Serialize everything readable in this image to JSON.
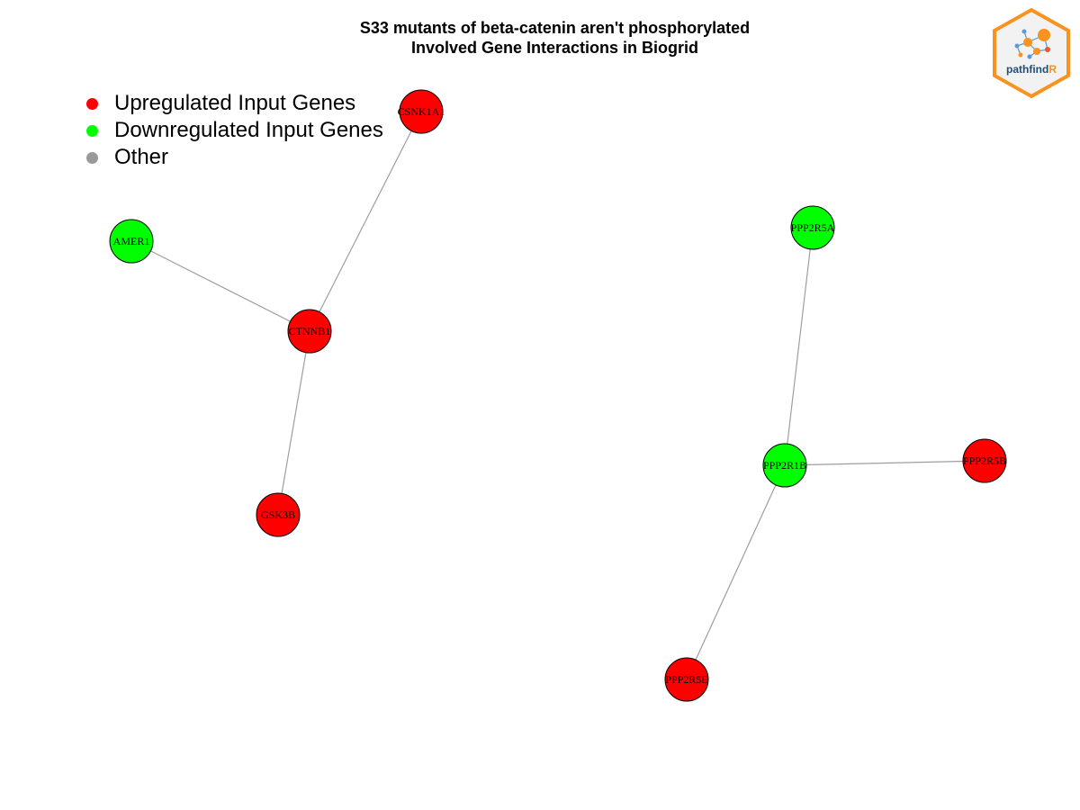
{
  "title": {
    "line1": "S33 mutants of beta-catenin aren't phosphorylated",
    "line2": "Involved Gene Interactions in Biogrid"
  },
  "legend": [
    {
      "label": "Upregulated Input Genes",
      "color": "#ff0000"
    },
    {
      "label": "Downregulated Input Genes",
      "color": "#00ff00"
    },
    {
      "label": "Other",
      "color": "#999999"
    }
  ],
  "logo": {
    "text_main": "pathfind",
    "text_accent": "R",
    "border_color": "#f7931e",
    "text_color": "#1f4e79"
  },
  "nodes": [
    {
      "id": "CSNK1A1",
      "label": "CSNK1A1",
      "status": "up"
    },
    {
      "id": "AMER1",
      "label": "AMER1",
      "status": "down"
    },
    {
      "id": "CTNNB1",
      "label": "CTNNB1",
      "status": "up"
    },
    {
      "id": "GSK3B",
      "label": "GSK3B",
      "status": "up"
    },
    {
      "id": "PPP2R5A",
      "label": "PPP2R5A",
      "status": "down"
    },
    {
      "id": "PPP2R1B",
      "label": "PPP2R1B",
      "status": "down"
    },
    {
      "id": "PPP2R5B",
      "label": "PPP2R5B",
      "status": "up"
    },
    {
      "id": "PPP2R5E",
      "label": "PPP2R5E",
      "status": "up"
    }
  ],
  "edges": [
    {
      "source": "CTNNB1",
      "target": "CSNK1A1"
    },
    {
      "source": "CTNNB1",
      "target": "AMER1"
    },
    {
      "source": "CTNNB1",
      "target": "GSK3B"
    },
    {
      "source": "PPP2R1B",
      "target": "PPP2R5A"
    },
    {
      "source": "PPP2R1B",
      "target": "PPP2R5B"
    },
    {
      "source": "PPP2R1B",
      "target": "PPP2R5E"
    }
  ],
  "status_colors": {
    "up": "#ff0000",
    "down": "#00ff00",
    "other": "#999999"
  },
  "edge_color": "#9e9e9e"
}
